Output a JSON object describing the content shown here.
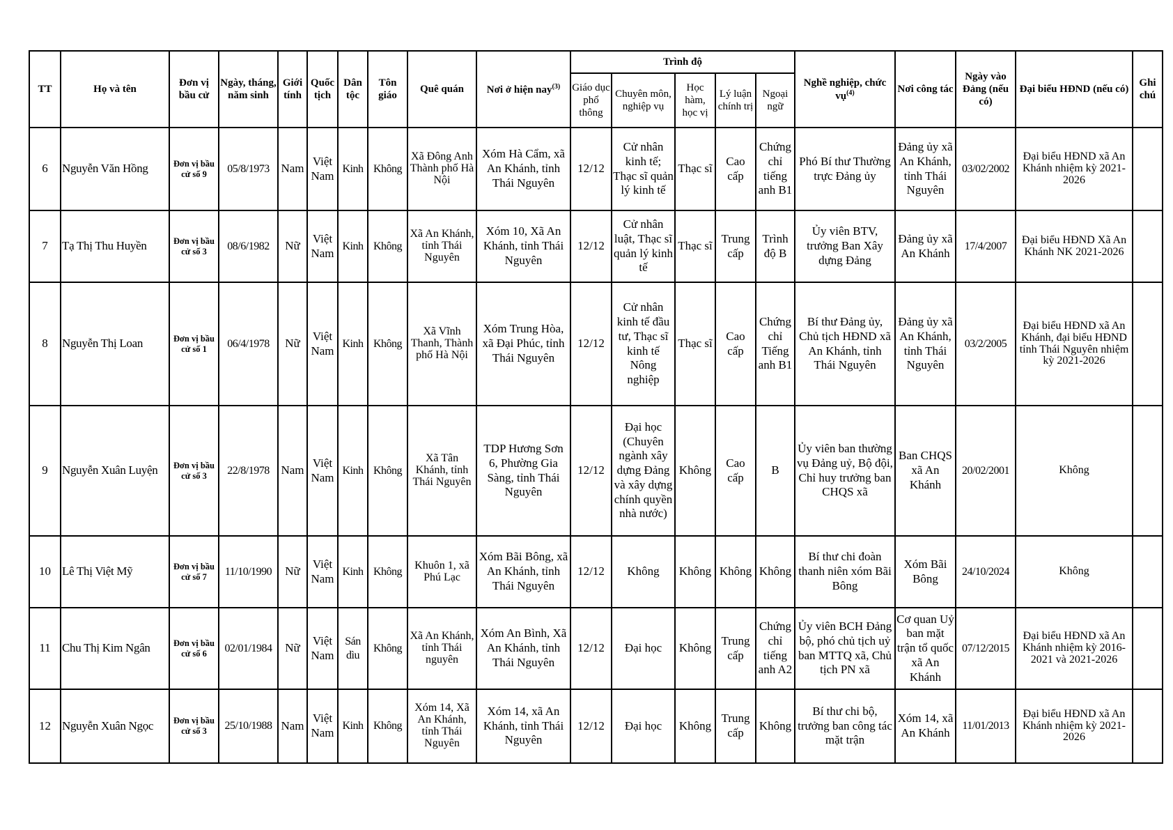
{
  "headers": {
    "tt": "TT",
    "ho_ten": "Họ và tên",
    "don_vi": "Đơn vị bầu cử",
    "ngay_sinh": "Ngày, tháng, năm sinh",
    "gioi_tinh": "Giới tính",
    "quoc_tich": "Quốc tịch",
    "dan_toc": "Dân tộc",
    "ton_giao": "Tôn giáo",
    "que_quan": "Quê quán",
    "noi_o": "Nơi ở hiện nay",
    "noi_o_note": "(3)",
    "trinh_do": "Trình độ",
    "giao_duc": "Giáo dục phổ thông",
    "chuyen_mon": "Chuyên môn, nghiệp vụ",
    "hoc_ham": "Học hàm, học vị",
    "ly_luan": "Lý luận chính trị",
    "ngoai_ngu": "Ngoại ngữ",
    "nghe_nghiep": "Nghề nghiệp, chức vụ",
    "nghe_nghiep_note": "(4)",
    "noi_cong_tac": "Nơi công tác",
    "ngay_vao_dang": "Ngày vào Đảng (nếu có)",
    "dai_bieu": "Đại biểu HĐND (nếu có)",
    "ghi_chu": "Ghi chú"
  },
  "rows": [
    {
      "tt": "6",
      "ho_ten": "Nguyễn Văn Hồng",
      "don_vi": "Đơn vị bầu cử số 9",
      "ngay_sinh": "05/8/1973",
      "gioi_tinh": "Nam",
      "quoc_tich": "Việt Nam",
      "dan_toc": "Kinh",
      "ton_giao": "Không",
      "que_quan": "Xã Đông Anh Thành phố Hà Nội",
      "noi_o": "Xóm Hà Cẩm, xã An Khánh, tỉnh Thái Nguyên",
      "giao_duc": "12/12",
      "chuyen_mon": "Cử nhân kinh tế; Thạc sĩ quản lý kinh tế",
      "hoc_ham": "Thạc sĩ",
      "ly_luan": "Cao cấp",
      "ngoai_ngu": "Chứng chỉ tiếng anh B1",
      "nghe_nghiep": "Phó Bí thư Thường trực Đảng ủy",
      "noi_cong_tac": "Đảng ủy xã An Khánh, tỉnh Thái Nguyên",
      "ngay_vao_dang": "03/02/2002",
      "dai_bieu": "Đại biểu HĐND xã An Khánh nhiệm kỳ 2021-2026",
      "ghi_chu": ""
    },
    {
      "tt": "7",
      "ho_ten": "Tạ Thị Thu Huyền",
      "don_vi": "Đơn vị bầu cử số 3",
      "ngay_sinh": "08/6/1982",
      "gioi_tinh": "Nữ",
      "quoc_tich": "Việt Nam",
      "dan_toc": "Kinh",
      "ton_giao": "Không",
      "que_quan": "Xã An Khánh, tỉnh Thái Nguyên",
      "noi_o": "Xóm 10, Xã An Khánh, tỉnh Thái Nguyên",
      "giao_duc": "12/12",
      "chuyen_mon": "Cử nhân luật, Thạc sĩ quản lý kinh tế",
      "hoc_ham": "Thạc sĩ",
      "ly_luan": "Trung cấp",
      "ngoai_ngu": "Trình độ B",
      "nghe_nghiep": "Ủy viên BTV, trưởng Ban Xây dựng Đảng",
      "noi_cong_tac": "Đảng ủy xã An Khánh",
      "ngay_vao_dang": "17/4/2007",
      "dai_bieu": "Đại biểu HĐND Xã An Khánh NK 2021-2026",
      "ghi_chu": ""
    },
    {
      "tt": "8",
      "ho_ten": "Nguyễn Thị Loan",
      "don_vi": "Đơn vị bầu cử số 1",
      "ngay_sinh": "06/4/1978",
      "gioi_tinh": "Nữ",
      "quoc_tich": "Việt Nam",
      "dan_toc": "Kinh",
      "ton_giao": "Không",
      "que_quan": "Xã Vĩnh Thanh, Thành phố Hà Nội",
      "noi_o": "Xóm Trung Hòa, xã Đại Phúc, tỉnh Thái Nguyên",
      "giao_duc": "12/12",
      "chuyen_mon": "Cử nhân kinh tế đầu tư, Thạc sĩ kinh tế Nông nghiệp",
      "hoc_ham": "Thạc sĩ",
      "ly_luan": "Cao cấp",
      "ngoai_ngu": "Chứng chỉ Tiếng anh B1",
      "nghe_nghiep": "Bí thư Đảng ủy, Chủ tịch HĐND xã An Khánh, tỉnh Thái Nguyên",
      "noi_cong_tac": "Đảng ủy xã An Khánh, tỉnh Thái Nguyên",
      "ngay_vao_dang": "03/2/2005",
      "dai_bieu": "Đại biểu HĐND xã An Khánh, đại biểu HĐND tỉnh Thái Nguyên nhiệm kỳ 2021-2026",
      "ghi_chu": ""
    },
    {
      "tt": "9",
      "ho_ten": "Nguyễn Xuân Luyện",
      "don_vi": "Đơn vị bầu cử số 3",
      "ngay_sinh": "22/8/1978",
      "gioi_tinh": "Nam",
      "quoc_tich": "Việt Nam",
      "dan_toc": "Kinh",
      "ton_giao": "Không",
      "que_quan": "Xã Tân Khánh, tỉnh Thái Nguyên",
      "noi_o": "TDP Hương Sơn 6, Phường Gia Sàng, tỉnh Thái Nguyên",
      "giao_duc": "12/12",
      "chuyen_mon": "Đại học (Chuyên ngành xây dựng Đảng và xây dựng chính quyền nhà nước)",
      "hoc_ham": "Không",
      "ly_luan": "Cao cấp",
      "ngoai_ngu": "B",
      "nghe_nghiep": "Ủy viên ban thường vụ Đảng uỷ, Bộ đội, Chỉ huy trưởng ban CHQS xã",
      "noi_cong_tac": "Ban CHQS xã An Khánh",
      "ngay_vao_dang": "20/02/2001",
      "dai_bieu": "Không",
      "ghi_chu": ""
    },
    {
      "tt": "10",
      "ho_ten": "Lê Thị Việt Mỹ",
      "don_vi": "Đơn vị bầu cử số 7",
      "ngay_sinh": "11/10/1990",
      "gioi_tinh": "Nữ",
      "quoc_tich": "Việt Nam",
      "dan_toc": "Kinh",
      "ton_giao": "Không",
      "que_quan": "Khuôn 1, xã Phú Lạc",
      "noi_o": "Xóm Bãi Bông, xã An Khánh, tỉnh Thái Nguyên",
      "giao_duc": "12/12",
      "chuyen_mon": "Không",
      "hoc_ham": "Không",
      "ly_luan": "Không",
      "ngoai_ngu": "Không",
      "nghe_nghiep": "Bí thư chi đoàn thanh niên xóm Bãi Bông",
      "noi_cong_tac": "Xóm Bãi Bông",
      "ngay_vao_dang": "24/10/2024",
      "dai_bieu": "Không",
      "ghi_chu": ""
    },
    {
      "tt": "11",
      "ho_ten": "Chu Thị Kim Ngân",
      "don_vi": "Đơn vị bầu cử số 6",
      "ngay_sinh": "02/01/1984",
      "gioi_tinh": "Nữ",
      "quoc_tich": "Việt Nam",
      "dan_toc": "Sán dìu",
      "ton_giao": "Không",
      "que_quan": "Xã An Khánh, tỉnh Thái nguyên",
      "noi_o": "Xóm An Bình, Xã An Khánh, tỉnh Thái Nguyên",
      "giao_duc": "12/12",
      "chuyen_mon": "Đại học",
      "hoc_ham": "Không",
      "ly_luan": "Trung cấp",
      "ngoai_ngu": "Chứng chỉ tiếng anh A2",
      "nghe_nghiep": "Ủy viên BCH Đảng bộ, phó chủ tịch uỷ ban MTTQ xã, Chủ tịch PN xã",
      "noi_cong_tac": "Cơ quan Uỷ ban mặt trận tổ quốc xã An Khánh",
      "ngay_vao_dang": "07/12/2015",
      "dai_bieu": "Đại biểu HĐND xã An Khánh nhiệm kỳ 2016-2021 và 2021-2026",
      "ghi_chu": ""
    },
    {
      "tt": "12",
      "ho_ten": "Nguyễn Xuân Ngọc",
      "don_vi": "Đơn vị bầu cử số 3",
      "ngay_sinh": "25/10/1988",
      "gioi_tinh": "Nam",
      "quoc_tich": "Việt Nam",
      "dan_toc": "Kinh",
      "ton_giao": "Không",
      "que_quan": "Xóm 14, Xã An Khánh, tỉnh Thái Nguyên",
      "noi_o": "Xóm 14, xã An Khánh, tỉnh Thái Nguyên",
      "giao_duc": "12/12",
      "chuyen_mon": "Đại học",
      "hoc_ham": "Không",
      "ly_luan": "Trung cấp",
      "ngoai_ngu": "Không",
      "nghe_nghiep": "Bí thư chi bộ, trưởng ban công tác mặt trận",
      "noi_cong_tac": "Xóm 14, xã An Khánh",
      "ngay_vao_dang": "11/01/2013",
      "dai_bieu": "Đại biểu HĐND xã An Khánh nhiệm kỳ 2021-2026",
      "ghi_chu": ""
    }
  ]
}
